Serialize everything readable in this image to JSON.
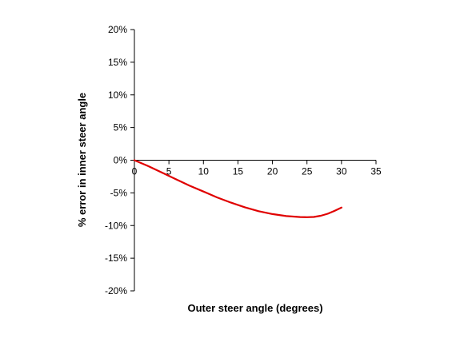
{
  "chart_data": {
    "type": "line",
    "title": "",
    "xlabel": "Outer steer angle (degrees)",
    "ylabel": "% error in inner steer angle",
    "xlim": [
      0,
      35
    ],
    "ylim": [
      -20,
      20
    ],
    "x_ticks": [
      0,
      5,
      10,
      15,
      20,
      25,
      30,
      35
    ],
    "x_tick_labels": [
      "0",
      "5",
      "10",
      "15",
      "20",
      "25",
      "30",
      "35"
    ],
    "y_ticks": [
      20,
      15,
      10,
      5,
      0,
      -5,
      -10,
      -15,
      -20
    ],
    "y_tick_labels": [
      "20%",
      "15%",
      "10%",
      "5%",
      "0%",
      "-5%",
      "-10%",
      "-15%",
      "-20%"
    ],
    "grid": false,
    "legend": "none",
    "series": [
      {
        "color": "#e00000",
        "x": [
          0,
          2,
          4,
          6,
          8,
          10,
          12,
          14,
          16,
          18,
          20,
          22,
          24,
          25,
          26,
          27,
          28,
          29,
          30
        ],
        "y": [
          0,
          -0.9,
          -1.9,
          -2.9,
          -3.9,
          -4.8,
          -5.7,
          -6.5,
          -7.2,
          -7.8,
          -8.25,
          -8.55,
          -8.7,
          -8.72,
          -8.68,
          -8.5,
          -8.2,
          -7.75,
          -7.25
        ]
      }
    ]
  }
}
